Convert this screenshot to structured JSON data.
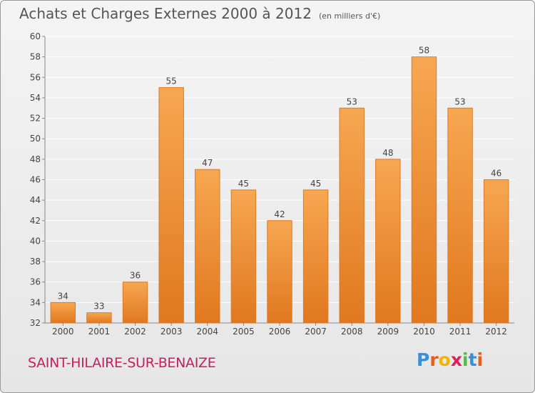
{
  "header": {
    "title": "Achats et Charges Externes 2000 à 2012",
    "unit": "(en milliers d'€)"
  },
  "footer": {
    "city": "SAINT-HILAIRE-SUR-BENAIZE",
    "logo": {
      "letters": [
        "P",
        "r",
        "o",
        "x",
        "i",
        "t",
        "i"
      ],
      "colors": [
        "#3b8fd6",
        "#e85d1d",
        "#f0b400",
        "#d8205f",
        "#54b948",
        "#3b8fd6",
        "#e85d1d"
      ]
    }
  },
  "chart_data": {
    "type": "bar",
    "categories": [
      "2000",
      "2001",
      "2002",
      "2003",
      "2004",
      "2005",
      "2006",
      "2007",
      "2008",
      "2009",
      "2010",
      "2011",
      "2012"
    ],
    "values": [
      34,
      33,
      36,
      55,
      47,
      45,
      42,
      45,
      53,
      48,
      58,
      53,
      46
    ],
    "ylim": [
      32,
      60
    ],
    "yticks": [
      32,
      34,
      36,
      38,
      40,
      42,
      44,
      46,
      48,
      50,
      52,
      54,
      56,
      58,
      60
    ],
    "grid": true,
    "data_labels": true,
    "colors": {
      "bar_top": "#f7a751",
      "bar_bottom": "#e0781f",
      "bar_edge": "#d97a28"
    }
  }
}
